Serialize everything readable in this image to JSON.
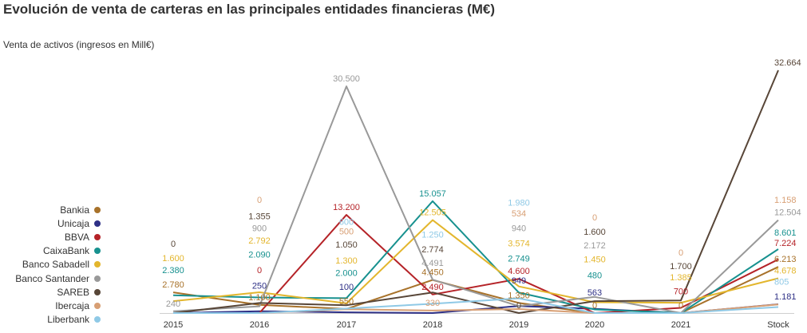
{
  "chart_data": {
    "type": "line",
    "title": "Evolución de venta de carteras en las principales entidades financieras (M€)",
    "subtitle": "Venta de  activos  (ingresos en Mill€)",
    "categories": [
      "2015",
      "2016",
      "2017",
      "2018",
      "2019",
      "2020",
      "2021",
      "Stock"
    ],
    "series": [
      {
        "name": "Bankia",
        "color": "#a8722a",
        "values": [
          2780,
          1100,
          550,
          4450,
          1350,
          0,
          0,
          6213
        ],
        "labels": [
          "2.780",
          "1.100",
          "550",
          "4.450",
          "1.350",
          "0",
          "0",
          "6.213"
        ]
      },
      {
        "name": "Unicaja",
        "color": "#2e3086",
        "values": [
          0,
          250,
          100,
          0,
          949,
          563,
          0,
          1181
        ],
        "labels": [
          "",
          "250",
          "100",
          "",
          "949",
          "563",
          "",
          "1.181"
        ]
      },
      {
        "name": "BBVA",
        "color": "#b52328",
        "values": [
          0,
          0,
          13200,
          2490,
          4600,
          0,
          700,
          7224
        ],
        "labels": [
          "",
          "0",
          "13.200",
          "2.490",
          "4.600",
          "",
          "700",
          "7.224"
        ]
      },
      {
        "name": "CaixaBank",
        "color": "#17918f",
        "values": [
          2380,
          2090,
          2000,
          15057,
          2749,
          480,
          0,
          8601
        ],
        "labels": [
          "2.380",
          "2.090",
          "2.000",
          "15.057",
          "2.749",
          "480",
          "",
          "8.601"
        ]
      },
      {
        "name": "Banco Sabadell",
        "color": "#e3b62d",
        "values": [
          1600,
          2792,
          1300,
          12505,
          3574,
          1450,
          1385,
          4678
        ],
        "labels": [
          "1.600",
          "2.792",
          "1.300",
          "12.505",
          "3.574",
          "1.450",
          "1.385",
          "4.678"
        ]
      },
      {
        "name": "Banco Santander",
        "color": "#999999",
        "values": [
          240,
          900,
          30500,
          4491,
          940,
          2172,
          0,
          12504
        ],
        "labels": [
          "240",
          "900",
          "30.500",
          "4.491",
          "940",
          "2.172",
          "",
          "12.504"
        ]
      },
      {
        "name": "SAREB",
        "color": "#584638",
        "values": [
          0,
          1355,
          1050,
          2774,
          0,
          1600,
          1700,
          32664
        ],
        "labels": [
          "0",
          "1.355",
          "1.050",
          "2.774",
          "0",
          "1.600",
          "1.700",
          "32.664"
        ]
      },
      {
        "name": "Ibercaja",
        "color": "#d89f74",
        "values": [
          0,
          0,
          500,
          330,
          534,
          0,
          0,
          1158
        ],
        "labels": [
          "",
          "0",
          "500",
          "330",
          "534",
          "0",
          "0",
          "1.158"
        ]
      },
      {
        "name": "Liberbank",
        "color": "#8fc9e6",
        "values": [
          0,
          0,
          600,
          1250,
          1980,
          0,
          0,
          805
        ],
        "labels": [
          "",
          "",
          "600",
          "1.250",
          "1.980",
          "",
          "",
          "805"
        ]
      }
    ],
    "ylim": [
      0,
      33000
    ],
    "grid": false,
    "legend": "left"
  }
}
